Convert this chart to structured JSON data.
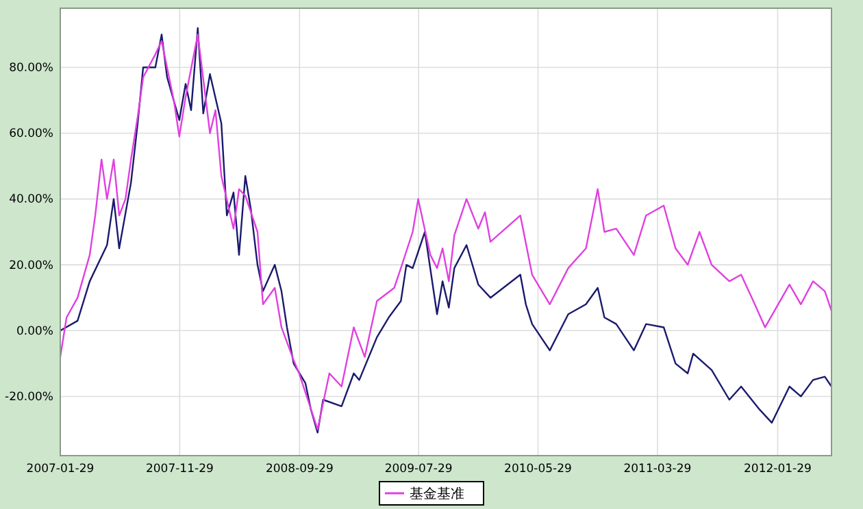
{
  "chart_data": {
    "type": "line",
    "legend": "bottom",
    "grid": true,
    "xlim": [
      "2007-01-29",
      "2012-06-14"
    ],
    "xticks": [
      "2007-01-29",
      "2007-11-29",
      "2008-09-29",
      "2009-07-29",
      "2010-05-29",
      "2011-03-29",
      "2012-01-29"
    ],
    "ylim": [
      -38,
      98
    ],
    "yticks": [
      {
        "value": -20,
        "label": "-20.00%"
      },
      {
        "value": 0,
        "label": "0.00%"
      },
      {
        "value": 20,
        "label": "20.00%"
      },
      {
        "value": 40,
        "label": "40.00%"
      },
      {
        "value": 60,
        "label": "60.00%"
      },
      {
        "value": 80,
        "label": "80.00%"
      }
    ],
    "series": [
      {
        "color": "#1a1a6e",
        "x": [
          "2007-01-29",
          "2007-03-14",
          "2007-04-14",
          "2007-05-28",
          "2007-06-14",
          "2007-06-28",
          "2007-07-28",
          "2007-08-14",
          "2007-08-28",
          "2007-09-28",
          "2007-10-14",
          "2007-10-28",
          "2007-11-28",
          "2007-12-14",
          "2007-12-28",
          "2008-01-14",
          "2008-01-28",
          "2008-02-14",
          "2008-03-14",
          "2008-03-28",
          "2008-04-14",
          "2008-04-28",
          "2008-05-14",
          "2008-05-28",
          "2008-06-14",
          "2008-06-28",
          "2008-07-28",
          "2008-08-14",
          "2008-08-28",
          "2008-09-14",
          "2008-10-14",
          "2008-10-28",
          "2008-11-14",
          "2008-11-28",
          "2009-01-14",
          "2009-02-14",
          "2009-02-28",
          "2009-04-14",
          "2009-05-14",
          "2009-06-14",
          "2009-06-28",
          "2009-07-14",
          "2009-08-14",
          "2009-09-14",
          "2009-09-28",
          "2009-10-14",
          "2009-10-28",
          "2009-11-28",
          "2009-12-28",
          "2010-01-28",
          "2010-04-14",
          "2010-04-28",
          "2010-05-14",
          "2010-06-28",
          "2010-08-14",
          "2010-09-28",
          "2010-10-28",
          "2010-11-14",
          "2010-12-14",
          "2011-01-28",
          "2011-02-28",
          "2011-04-14",
          "2011-05-14",
          "2011-06-14",
          "2011-06-28",
          "2011-08-14",
          "2011-09-28",
          "2011-10-28",
          "2011-12-14",
          "2012-01-14",
          "2012-02-28",
          "2012-03-28",
          "2012-04-28",
          "2012-05-28",
          "2012-06-14"
        ],
        "values": [
          0,
          3,
          15,
          26,
          40,
          25,
          45,
          63,
          80,
          80,
          90,
          77,
          64,
          75,
          67,
          92,
          66,
          78,
          63,
          35,
          42,
          23,
          47,
          37,
          20,
          12,
          20,
          12,
          1,
          -10,
          -16,
          -24,
          -31,
          -21,
          -23,
          -13,
          -15,
          -2,
          4,
          9,
          20,
          19,
          30,
          5,
          15,
          7,
          19,
          26,
          14,
          10,
          17,
          8,
          2,
          -6,
          5,
          8,
          13,
          4,
          2,
          -6,
          2,
          1,
          -10,
          -13,
          -7,
          -12,
          -21,
          -17,
          -24,
          -28,
          -17,
          -20,
          -15,
          -14,
          -17
        ]
      },
      {
        "name": "基金基准",
        "color": "#e040e0",
        "x": [
          "2007-01-29",
          "2007-02-14",
          "2007-03-14",
          "2007-04-14",
          "2007-04-28",
          "2007-05-14",
          "2007-05-28",
          "2007-06-14",
          "2007-06-28",
          "2007-07-14",
          "2007-07-28",
          "2007-08-14",
          "2007-08-28",
          "2007-09-28",
          "2007-10-14",
          "2007-11-14",
          "2007-11-28",
          "2007-12-14",
          "2008-01-14",
          "2008-02-14",
          "2008-02-28",
          "2008-03-14",
          "2008-04-14",
          "2008-04-28",
          "2008-05-14",
          "2008-06-14",
          "2008-06-28",
          "2008-07-28",
          "2008-08-14",
          "2008-09-14",
          "2008-09-28",
          "2008-11-14",
          "2008-12-14",
          "2009-01-14",
          "2009-02-14",
          "2009-03-14",
          "2009-04-14",
          "2009-05-28",
          "2009-06-14",
          "2009-07-14",
          "2009-07-28",
          "2009-08-28",
          "2009-09-14",
          "2009-09-28",
          "2009-10-14",
          "2009-10-28",
          "2009-11-28",
          "2009-12-28",
          "2010-01-14",
          "2010-01-28",
          "2010-04-14",
          "2010-05-14",
          "2010-06-28",
          "2010-08-14",
          "2010-09-28",
          "2010-10-28",
          "2010-11-14",
          "2010-12-14",
          "2011-01-28",
          "2011-02-28",
          "2011-04-14",
          "2011-05-14",
          "2011-06-14",
          "2011-07-14",
          "2011-08-14",
          "2011-09-28",
          "2011-10-28",
          "2011-11-28",
          "2011-12-28",
          "2012-02-28",
          "2012-03-28",
          "2012-04-28",
          "2012-05-28",
          "2012-06-14"
        ],
        "values": [
          -8,
          4,
          10,
          23,
          35,
          52,
          40,
          52,
          35,
          40,
          52,
          65,
          77,
          84,
          88,
          70,
          59,
          71,
          90,
          60,
          67,
          47,
          31,
          43,
          41,
          30,
          8,
          13,
          1,
          -9,
          -13,
          -30,
          -13,
          -17,
          1,
          -8,
          9,
          13,
          19,
          30,
          40,
          23,
          19,
          25,
          15,
          29,
          40,
          31,
          36,
          27,
          35,
          17,
          8,
          19,
          25,
          43,
          30,
          31,
          23,
          35,
          38,
          25,
          20,
          30,
          20,
          15,
          17,
          9,
          1,
          14,
          8,
          15,
          12,
          6
        ]
      }
    ]
  }
}
